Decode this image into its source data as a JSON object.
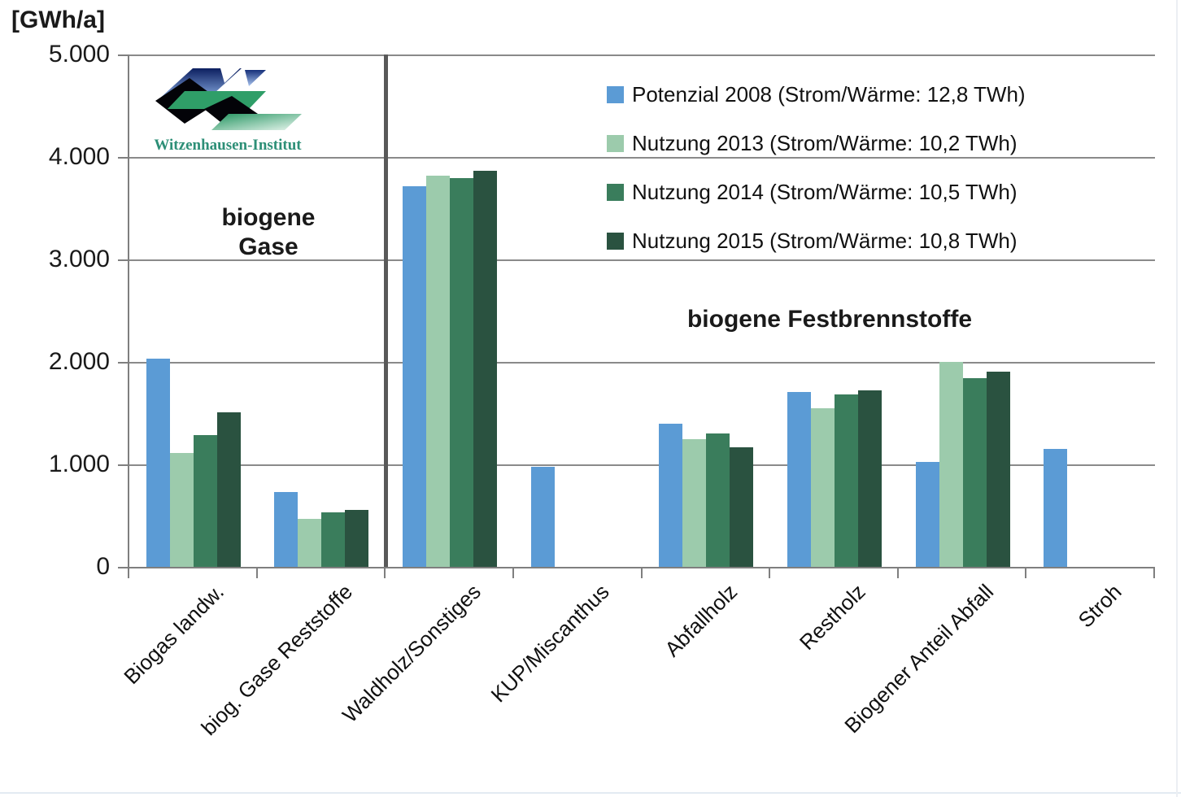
{
  "page": {
    "unit_label": "[GWh/a]",
    "logo_text": "Witzenhausen-Institut"
  },
  "sections": {
    "left_line1": "biogene",
    "left_line2": "Gase",
    "right": "biogene Festbrennstoffe"
  },
  "chart_data": {
    "type": "bar",
    "title": "",
    "ylabel": "[GWh/a]",
    "xlabel": "",
    "ylim": [
      0,
      5000
    ],
    "ytick_step": 1000,
    "ytick_labels_top_to_bottom": [
      "5.000",
      "4.000",
      "3.000",
      "2.000",
      "1.000",
      "0"
    ],
    "grid": true,
    "legend_position": "top-right-inside",
    "categories": [
      "Biogas landw.",
      "biog. Gase Reststoffe",
      "Waldholz/Sonstiges",
      "KUP/Miscanthus",
      "Abfallholz",
      "Restholz",
      "Biogener Anteil Abfall",
      "Stroh"
    ],
    "series": [
      {
        "name": "Potenzial 2008 (Strom/Wärme: 12,8 TWh)",
        "color": "#5B9BD5",
        "values": [
          2030,
          730,
          3715,
          975,
          1400,
          1705,
          1020,
          1150
        ]
      },
      {
        "name": "Nutzung 2013 (Strom/Wärme: 10,2 TWh)",
        "color": "#9CCBAC",
        "values": [
          1110,
          465,
          3820,
          0,
          1245,
          1545,
          2000,
          0
        ]
      },
      {
        "name": "Nutzung 2014 (Strom/Wärme: 10,5 TWh)",
        "color": "#3A7D5C",
        "values": [
          1285,
          535,
          3790,
          0,
          1300,
          1680,
          1840,
          0
        ]
      },
      {
        "name": "Nutzung 2015 (Strom/Wärme: 10,8 TWh)",
        "color": "#2A5240",
        "values": [
          1505,
          555,
          3865,
          0,
          1170,
          1725,
          1905,
          0
        ]
      }
    ],
    "group_divider_after_category_index": 1,
    "annotations": [
      "biogene Gase",
      "biogene Festbrennstoffe"
    ],
    "axis_color": "#7f7f7f",
    "gridline_color": "#8a8a8a",
    "divider_color": "#595959"
  }
}
